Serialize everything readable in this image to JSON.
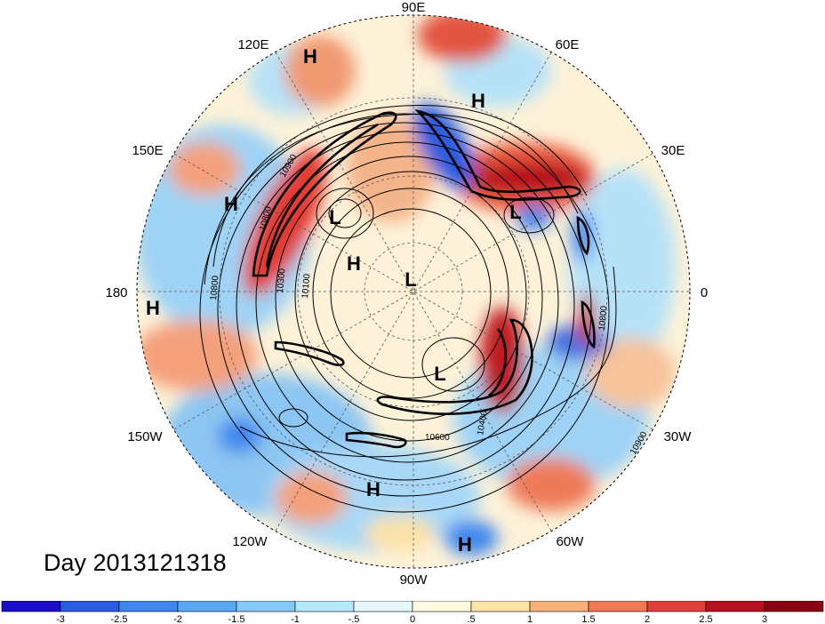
{
  "map": {
    "date_label": "Day 2013121318",
    "longitude_labels": [
      "90E",
      "60E",
      "30E",
      "0",
      "30W",
      "60W",
      "90W",
      "120W",
      "150W",
      "180",
      "150E",
      "120E"
    ],
    "pressure_systems": [
      "H",
      "H",
      "H",
      "L",
      "L",
      "H",
      "L",
      "H",
      "L",
      "H",
      "H"
    ],
    "contour_labels": [
      "10900",
      "10800",
      "10300",
      "10100",
      "10800",
      "10600",
      "10800",
      "10900",
      "10400"
    ]
  },
  "colorbar": {
    "ticks": [
      "-3",
      "-2.5",
      "-2",
      "-1.5",
      "-1",
      "-.5",
      "0",
      ".5",
      "1",
      "1.5",
      "2",
      "2.5",
      "3"
    ],
    "colors": [
      "#1a0ec8",
      "#2a5be0",
      "#3f87ee",
      "#5aa7f4",
      "#84c8f7",
      "#b4e8fb",
      "#e4f8fd",
      "#fffbe0",
      "#fde4a6",
      "#f8b07a",
      "#f07a58",
      "#e0403a",
      "#b8101e",
      "#8b0010"
    ]
  }
}
